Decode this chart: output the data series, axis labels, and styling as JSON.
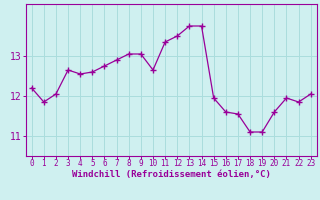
{
  "x": [
    0,
    1,
    2,
    3,
    4,
    5,
    6,
    7,
    8,
    9,
    10,
    11,
    12,
    13,
    14,
    15,
    16,
    17,
    18,
    19,
    20,
    21,
    22,
    23
  ],
  "y": [
    12.2,
    11.85,
    12.05,
    12.65,
    12.55,
    12.6,
    12.75,
    12.9,
    13.05,
    13.05,
    12.65,
    13.35,
    13.5,
    13.75,
    13.75,
    11.95,
    11.6,
    11.55,
    11.1,
    11.1,
    11.6,
    11.95,
    11.85,
    12.05
  ],
  "line_color": "#990099",
  "marker": "+",
  "marker_size": 4,
  "bg_color": "#cff0f0",
  "grid_color": "#aadddd",
  "xlabel": "Windchill (Refroidissement éolien,°C)",
  "xlabel_color": "#990099",
  "tick_color": "#990099",
  "spine_color": "#990099",
  "ylim": [
    10.5,
    14.3
  ],
  "xlim": [
    -0.5,
    23.5
  ],
  "yticks": [
    11,
    12,
    13
  ],
  "xticks": [
    0,
    1,
    2,
    3,
    4,
    5,
    6,
    7,
    8,
    9,
    10,
    11,
    12,
    13,
    14,
    15,
    16,
    17,
    18,
    19,
    20,
    21,
    22,
    23
  ],
  "tick_fontsize": 5.5,
  "ylabel_fontsize": 6.0,
  "xlabel_fontsize": 6.5
}
